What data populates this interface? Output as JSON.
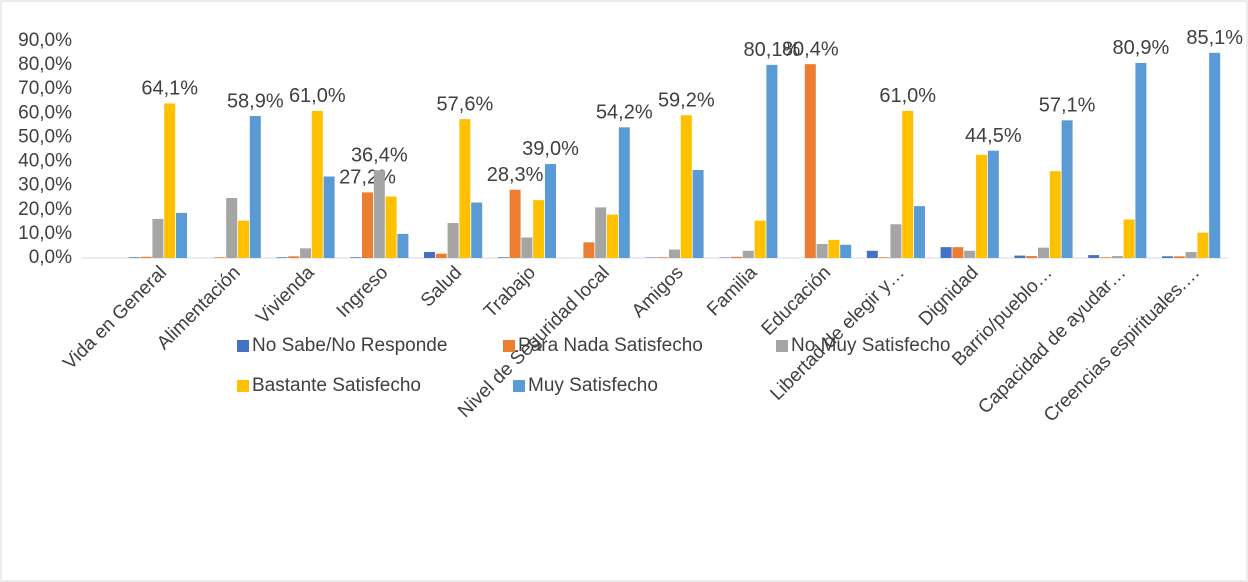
{
  "chart_data": {
    "type": "bar",
    "categories": [
      "Vida en General",
      "Alimentación",
      "Vivienda",
      "Ingreso",
      "Salud",
      "Trabajo",
      "Nivel de Seguridad local",
      "Amigos",
      "Familia",
      "Educación",
      "Libertad de elegir y…",
      "Dignidad",
      "Barrio/pueblo…",
      "Capacidad de ayudar…",
      "Creencias espirituales.…"
    ],
    "series": [
      {
        "name": "No Sabe/No Responde",
        "color": "#4472c4",
        "values": [
          0.3,
          0,
          0.3,
          0.3,
          2.5,
          0.3,
          0,
          0.2,
          0.2,
          0,
          3,
          4.5,
          1,
          1.2,
          0.7
        ],
        "value_labels": [
          null,
          null,
          null,
          null,
          null,
          null,
          null,
          null,
          null,
          null,
          null,
          null,
          null,
          null,
          null
        ]
      },
      {
        "name": "Para Nada Satisfecho",
        "color": "#ed7d31",
        "values": [
          0.5,
          0.3,
          0.7,
          27.2,
          1.8,
          28.3,
          6.5,
          0.3,
          0.5,
          80.4,
          0.3,
          4.5,
          0.8,
          0.3,
          0.7
        ],
        "value_labels": [
          null,
          null,
          null,
          "27,2%",
          null,
          "28,3%",
          null,
          null,
          null,
          "80,4%",
          null,
          null,
          null,
          null,
          null
        ]
      },
      {
        "name": "No Muy Satisfecho",
        "color": "#a5a5a5",
        "values": [
          16.2,
          24.9,
          4,
          36.4,
          14.5,
          8.5,
          21,
          3.5,
          3,
          5.8,
          14,
          3,
          4.3,
          0.8,
          2.5
        ],
        "value_labels": [
          null,
          null,
          null,
          "36,4%",
          null,
          null,
          null,
          null,
          null,
          null,
          null,
          null,
          null,
          null,
          null
        ]
      },
      {
        "name": "Bastante Satisfecho",
        "color": "#ffc000",
        "values": [
          64.1,
          15.5,
          61.0,
          25.5,
          57.6,
          24,
          18,
          59.2,
          15.5,
          7.5,
          61.0,
          42.8,
          36,
          16,
          10.5
        ],
        "value_labels": [
          "64,1%",
          null,
          "61,0%",
          null,
          "57,6%",
          null,
          null,
          "59,2%",
          null,
          null,
          "61,0%",
          null,
          null,
          null,
          null
        ]
      },
      {
        "name": "Muy Satisfecho",
        "color": "#5b9bd5",
        "values": [
          18.7,
          58.9,
          33.8,
          10,
          23,
          39.0,
          54.2,
          36.5,
          80.1,
          5.5,
          21.5,
          44.5,
          57.1,
          80.9,
          85.1
        ],
        "value_labels": [
          null,
          "58,9%",
          null,
          null,
          null,
          "39,0%",
          "54,2%",
          null,
          "80,1%",
          null,
          null,
          "44,5%",
          "57,1%",
          "80,9%",
          "85,1%"
        ]
      }
    ],
    "ylim": [
      0,
      90
    ],
    "yticks": [
      {
        "value": 0,
        "label": "0,0%"
      },
      {
        "value": 10,
        "label": "10,0%"
      },
      {
        "value": 20,
        "label": "20,0%"
      },
      {
        "value": 30,
        "label": "30,0%"
      },
      {
        "value": 40,
        "label": "40,0%"
      },
      {
        "value": 50,
        "label": "50,0%"
      },
      {
        "value": 60,
        "label": "60,0%"
      },
      {
        "value": 70,
        "label": "70,0%"
      },
      {
        "value": 80,
        "label": "80,0%"
      },
      {
        "value": 90,
        "label": "90,0%"
      }
    ],
    "grid": false,
    "legend": "bottom"
  }
}
